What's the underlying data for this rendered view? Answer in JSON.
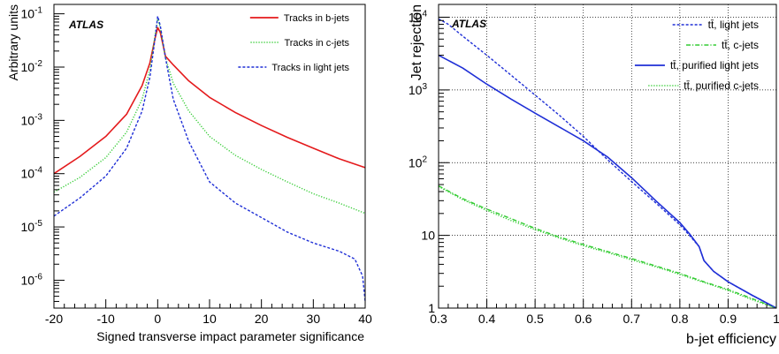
{
  "chart_data": [
    {
      "type": "line",
      "brand": "ATLAS",
      "xlabel": "Signed transverse impact parameter significance",
      "ylabel": "Arbitrary units",
      "xlim": [
        -20,
        40
      ],
      "ylim": [
        3e-07,
        0.15
      ],
      "yscale": "log",
      "grid": false,
      "legend_position": "top-right",
      "xticks": [
        -20,
        -10,
        0,
        10,
        20,
        30,
        40
      ],
      "yticks": [
        {
          "value": 1e-06,
          "base": "10",
          "exp": "-6"
        },
        {
          "value": 1e-05,
          "base": "10",
          "exp": "-5"
        },
        {
          "value": 0.0001,
          "base": "10",
          "exp": "-4"
        },
        {
          "value": 0.001,
          "base": "10",
          "exp": "-3"
        },
        {
          "value": 0.01,
          "base": "10",
          "exp": "-2"
        },
        {
          "value": 0.1,
          "base": "10",
          "exp": "-1"
        }
      ],
      "series": [
        {
          "name": "Tracks in b-jets",
          "color": "#e41a1c",
          "style": "solid",
          "points": [
            [
              -20,
              0.0001
            ],
            [
              -15,
              0.00021
            ],
            [
              -10,
              0.0005
            ],
            [
              -6,
              0.0013
            ],
            [
              -3,
              0.0045
            ],
            [
              -1.5,
              0.012
            ],
            [
              -0.5,
              0.035
            ],
            [
              0,
              0.055
            ],
            [
              0.5,
              0.045
            ],
            [
              1.5,
              0.016
            ],
            [
              3,
              0.011
            ],
            [
              6,
              0.0055
            ],
            [
              10,
              0.0027
            ],
            [
              15,
              0.0014
            ],
            [
              20,
              0.0008
            ],
            [
              25,
              0.00048
            ],
            [
              30,
              0.0003
            ],
            [
              35,
              0.00019
            ],
            [
              40,
              0.00013
            ]
          ]
        },
        {
          "name": "Tracks in c-jets",
          "color": "#33cc33",
          "style": "dotted",
          "points": [
            [
              -20,
              4.5e-05
            ],
            [
              -15,
              8.5e-05
            ],
            [
              -10,
              0.0002
            ],
            [
              -6,
              0.0006
            ],
            [
              -3,
              0.0025
            ],
            [
              -1.5,
              0.009
            ],
            [
              -0.5,
              0.04
            ],
            [
              0,
              0.08
            ],
            [
              0.5,
              0.055
            ],
            [
              1.5,
              0.015
            ],
            [
              3,
              0.005
            ],
            [
              6,
              0.0015
            ],
            [
              10,
              0.0005
            ],
            [
              15,
              0.00022
            ],
            [
              20,
              0.00012
            ],
            [
              25,
              7e-05
            ],
            [
              30,
              4.2e-05
            ],
            [
              35,
              2.8e-05
            ],
            [
              40,
              1.8e-05
            ]
          ]
        },
        {
          "name": "Tracks in light jets",
          "color": "#1f2fd6",
          "style": "dashed",
          "points": [
            [
              -20,
              1.6e-05
            ],
            [
              -15,
              3.5e-05
            ],
            [
              -10,
              9e-05
            ],
            [
              -6,
              0.0003
            ],
            [
              -3,
              0.0015
            ],
            [
              -1.5,
              0.0065
            ],
            [
              -0.5,
              0.035
            ],
            [
              0,
              0.09
            ],
            [
              0.5,
              0.06
            ],
            [
              1.5,
              0.015
            ],
            [
              3,
              0.0025
            ],
            [
              6,
              0.0004
            ],
            [
              10,
              7e-05
            ],
            [
              15,
              2.8e-05
            ],
            [
              20,
              1.5e-05
            ],
            [
              25,
              8e-06
            ],
            [
              30,
              5e-06
            ],
            [
              35,
              3.5e-06
            ],
            [
              38,
              2.5e-06
            ],
            [
              39.5,
              1.2e-06
            ],
            [
              40,
              4e-07
            ]
          ]
        }
      ]
    },
    {
      "type": "line",
      "brand": "ATLAS",
      "xlabel": "b-jet efficiency",
      "ylabel": "Jet rejection",
      "xlim": [
        0.3,
        1.0
      ],
      "ylim": [
        1,
        15000
      ],
      "yscale": "log",
      "grid": true,
      "legend_position": "top-right",
      "xticks": [
        0.3,
        0.4,
        0.5,
        0.6,
        0.7,
        0.8,
        0.9,
        1.0
      ],
      "xtick_labels": [
        "0.3",
        "0.4",
        "0.5",
        "0.6",
        "0.7",
        "0.8",
        "0.9",
        "1"
      ],
      "yticks": [
        {
          "value": 1,
          "base": "1",
          "exp": ""
        },
        {
          "value": 10,
          "base": "10",
          "exp": ""
        },
        {
          "value": 100,
          "base": "10",
          "exp": "2"
        },
        {
          "value": 1000,
          "base": "10",
          "exp": "3"
        },
        {
          "value": 10000,
          "base": "10",
          "exp": "4"
        }
      ],
      "series": [
        {
          "name": "tt̄, light jets",
          "color": "#1f2fd6",
          "style": "dashed",
          "points": [
            [
              0.3,
              9500
            ],
            [
              0.32,
              8000
            ],
            [
              0.35,
              5500
            ],
            [
              0.4,
              3000
            ],
            [
              0.45,
              1600
            ],
            [
              0.5,
              850
            ],
            [
              0.55,
              450
            ],
            [
              0.6,
              230
            ],
            [
              0.65,
              110
            ],
            [
              0.7,
              55
            ],
            [
              0.75,
              28
            ],
            [
              0.8,
              14
            ],
            [
              0.82,
              10
            ],
            [
              0.84,
              7
            ],
            [
              0.85,
              4.5
            ],
            [
              0.87,
              3.2
            ],
            [
              0.9,
              2.3
            ],
            [
              0.95,
              1.5
            ],
            [
              1.0,
              1.0
            ]
          ]
        },
        {
          "name": "tt̄, c-jets",
          "color": "#33cc33",
          "style": "dashdot",
          "points": [
            [
              0.3,
              48
            ],
            [
              0.35,
              32
            ],
            [
              0.4,
              23
            ],
            [
              0.45,
              17
            ],
            [
              0.5,
              12.5
            ],
            [
              0.55,
              9.5
            ],
            [
              0.6,
              7.5
            ],
            [
              0.65,
              6
            ],
            [
              0.7,
              4.8
            ],
            [
              0.75,
              3.8
            ],
            [
              0.8,
              3.0
            ],
            [
              0.85,
              2.3
            ],
            [
              0.9,
              1.8
            ],
            [
              0.95,
              1.35
            ],
            [
              1.0,
              1.0
            ]
          ]
        },
        {
          "name": "tt̄, purified light jets",
          "color": "#1f2fd6",
          "style": "solid",
          "points": [
            [
              0.3,
              3000
            ],
            [
              0.35,
              2000
            ],
            [
              0.4,
              1200
            ],
            [
              0.45,
              750
            ],
            [
              0.5,
              480
            ],
            [
              0.55,
              310
            ],
            [
              0.6,
              200
            ],
            [
              0.65,
              120
            ],
            [
              0.7,
              62
            ],
            [
              0.75,
              30
            ],
            [
              0.8,
              15
            ],
            [
              0.82,
              10.5
            ],
            [
              0.84,
              7
            ],
            [
              0.85,
              4.5
            ],
            [
              0.87,
              3.2
            ],
            [
              0.9,
              2.3
            ],
            [
              0.95,
              1.5
            ],
            [
              1.0,
              1.0
            ]
          ]
        },
        {
          "name": "tt̄, purified c-jets",
          "color": "#33cc33",
          "style": "dotted",
          "points": [
            [
              0.3,
              47
            ],
            [
              0.35,
              31
            ],
            [
              0.4,
              22
            ],
            [
              0.45,
              16
            ],
            [
              0.5,
              12.0
            ],
            [
              0.55,
              9.2
            ],
            [
              0.6,
              7.2
            ],
            [
              0.65,
              5.8
            ],
            [
              0.7,
              4.6
            ],
            [
              0.75,
              3.7
            ],
            [
              0.8,
              2.9
            ],
            [
              0.85,
              2.25
            ],
            [
              0.9,
              1.75
            ],
            [
              0.95,
              1.3
            ],
            [
              1.0,
              1.0
            ]
          ]
        }
      ]
    }
  ]
}
